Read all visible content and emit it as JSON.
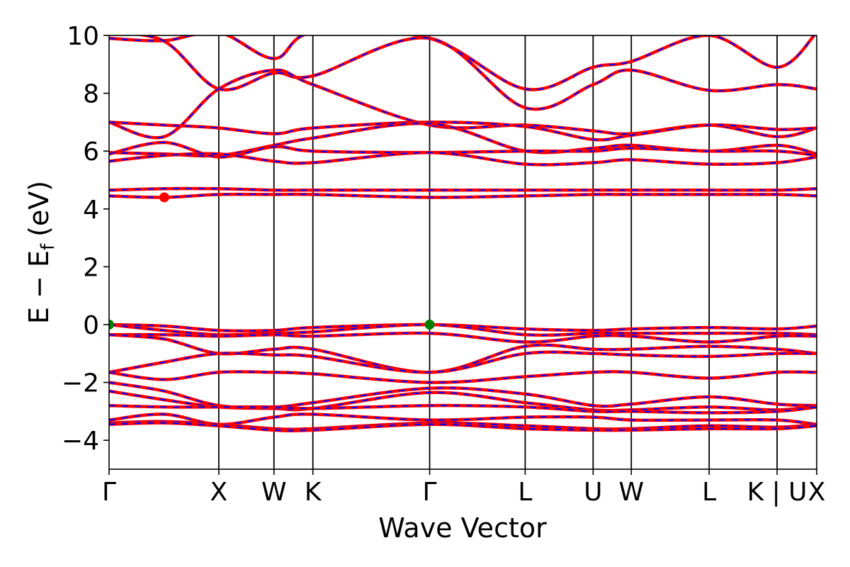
{
  "chart_data": {
    "type": "line",
    "title": "",
    "xlabel": "Wave Vector",
    "ylabel": "E − E",
    "ylabel_subscript": "f",
    "ylabel_unit": "(eV)",
    "ylim": [
      -5,
      10
    ],
    "yticks": [
      -4,
      -2,
      0,
      2,
      4,
      6,
      8,
      10
    ],
    "ytick_labels": [
      "−4",
      "−2",
      "0",
      "2",
      "4",
      "6",
      "8",
      "10"
    ],
    "grid": false,
    "legend": "none",
    "x_range": [
      0,
      1
    ],
    "kpoints": [
      {
        "label": "Γ",
        "x": 0.0
      },
      {
        "label": "X",
        "x": 0.155
      },
      {
        "label": "W",
        "x": 0.233
      },
      {
        "label": "K",
        "x": 0.288
      },
      {
        "label": "Γ",
        "x": 0.453
      },
      {
        "label": "L",
        "x": 0.588
      },
      {
        "label": "U",
        "x": 0.684
      },
      {
        "label": "W",
        "x": 0.738
      },
      {
        "label": "L",
        "x": 0.848
      },
      {
        "label": "K | U",
        "x": 0.944
      },
      {
        "label": "X",
        "x": 1.0
      }
    ],
    "colors": {
      "band": "#ff0000",
      "band_dash": "#0000ff",
      "cbm": "#ff0000",
      "vbm": "#008000",
      "kline": "#000000"
    },
    "cbm": [
      {
        "x": 0.078,
        "y": 4.4
      }
    ],
    "vbm": [
      {
        "x": 0.0,
        "y": 0.0
      },
      {
        "x": 0.453,
        "y": 0.0
      }
    ],
    "series": [
      {
        "values": [
          [
            0,
            9.9
          ],
          [
            0.078,
            9.82
          ],
          [
            0.155,
            10.1
          ],
          [
            0.233,
            9.2
          ],
          [
            0.288,
            10.1
          ],
          [
            0.453,
            9.9
          ],
          [
            0.588,
            8.15
          ],
          [
            0.684,
            8.9
          ],
          [
            0.738,
            9.1
          ],
          [
            0.848,
            10.0
          ],
          [
            0.944,
            8.9
          ],
          [
            1.0,
            10.1
          ]
        ]
      },
      {
        "values": [
          [
            0,
            10.1
          ],
          [
            0.078,
            9.8
          ],
          [
            0.155,
            8.15
          ],
          [
            0.233,
            8.7
          ],
          [
            0.288,
            8.6
          ],
          [
            0.453,
            9.9
          ],
          [
            0.588,
            7.5
          ],
          [
            0.684,
            8.3
          ],
          [
            0.738,
            8.8
          ],
          [
            0.848,
            8.1
          ],
          [
            0.944,
            8.3
          ],
          [
            1.0,
            8.15
          ]
        ]
      },
      {
        "values": [
          [
            0,
            7.0
          ],
          [
            0.078,
            6.5
          ],
          [
            0.155,
            8.15
          ],
          [
            0.233,
            8.8
          ],
          [
            0.288,
            8.3
          ],
          [
            0.453,
            6.9
          ],
          [
            0.588,
            6.9
          ],
          [
            0.684,
            6.7
          ],
          [
            0.738,
            6.6
          ],
          [
            0.848,
            6.9
          ],
          [
            0.944,
            6.5
          ],
          [
            1.0,
            6.8
          ]
        ]
      },
      {
        "values": [
          [
            0,
            7.0
          ],
          [
            0.078,
            6.9
          ],
          [
            0.155,
            6.8
          ],
          [
            0.233,
            6.6
          ],
          [
            0.288,
            6.8
          ],
          [
            0.453,
            7.0
          ],
          [
            0.588,
            6.85
          ],
          [
            0.684,
            6.4
          ],
          [
            0.738,
            6.55
          ],
          [
            0.848,
            6.9
          ],
          [
            0.944,
            6.75
          ],
          [
            1.0,
            6.8
          ]
        ]
      },
      {
        "values": [
          [
            0,
            5.95
          ],
          [
            0.078,
            5.9
          ],
          [
            0.155,
            5.85
          ],
          [
            0.233,
            6.2
          ],
          [
            0.288,
            6.45
          ],
          [
            0.453,
            6.95
          ],
          [
            0.588,
            6.0
          ],
          [
            0.684,
            6.1
          ],
          [
            0.738,
            6.2
          ],
          [
            0.848,
            6.0
          ],
          [
            0.944,
            6.2
          ],
          [
            1.0,
            5.9
          ]
        ]
      },
      {
        "values": [
          [
            0,
            5.9
          ],
          [
            0.078,
            6.3
          ],
          [
            0.155,
            5.8
          ],
          [
            0.233,
            6.15
          ],
          [
            0.288,
            6.0
          ],
          [
            0.453,
            5.95
          ],
          [
            0.588,
            6.0
          ],
          [
            0.684,
            6.0
          ],
          [
            0.738,
            6.1
          ],
          [
            0.848,
            6.0
          ],
          [
            0.944,
            6.0
          ],
          [
            1.0,
            5.85
          ]
        ]
      },
      {
        "values": [
          [
            0,
            5.65
          ],
          [
            0.078,
            5.85
          ],
          [
            0.155,
            5.9
          ],
          [
            0.233,
            5.65
          ],
          [
            0.288,
            5.6
          ],
          [
            0.453,
            5.95
          ],
          [
            0.588,
            5.55
          ],
          [
            0.684,
            5.6
          ],
          [
            0.738,
            5.7
          ],
          [
            0.848,
            5.55
          ],
          [
            0.944,
            5.6
          ],
          [
            1.0,
            5.8
          ]
        ]
      },
      {
        "values": [
          [
            0,
            4.65
          ],
          [
            0.078,
            4.7
          ],
          [
            0.155,
            4.7
          ],
          [
            0.233,
            4.65
          ],
          [
            0.288,
            4.65
          ],
          [
            0.453,
            4.65
          ],
          [
            0.588,
            4.65
          ],
          [
            0.684,
            4.65
          ],
          [
            0.738,
            4.65
          ],
          [
            0.848,
            4.65
          ],
          [
            0.944,
            4.65
          ],
          [
            1.0,
            4.7
          ]
        ]
      },
      {
        "values": [
          [
            0,
            4.45
          ],
          [
            0.078,
            4.4
          ],
          [
            0.155,
            4.5
          ],
          [
            0.233,
            4.5
          ],
          [
            0.288,
            4.5
          ],
          [
            0.453,
            4.4
          ],
          [
            0.588,
            4.45
          ],
          [
            0.684,
            4.5
          ],
          [
            0.738,
            4.5
          ],
          [
            0.848,
            4.5
          ],
          [
            0.944,
            4.5
          ],
          [
            1.0,
            4.45
          ]
        ]
      },
      {
        "values": [
          [
            0,
            0.0
          ],
          [
            0.078,
            -0.05
          ],
          [
            0.155,
            -0.2
          ],
          [
            0.233,
            -0.2
          ],
          [
            0.288,
            -0.1
          ],
          [
            0.453,
            0.0
          ],
          [
            0.588,
            -0.15
          ],
          [
            0.684,
            -0.2
          ],
          [
            0.738,
            -0.15
          ],
          [
            0.848,
            -0.1
          ],
          [
            0.944,
            -0.15
          ],
          [
            1.0,
            -0.05
          ]
        ]
      },
      {
        "values": [
          [
            0,
            0.0
          ],
          [
            0.078,
            -0.2
          ],
          [
            0.155,
            -0.35
          ],
          [
            0.233,
            -0.3
          ],
          [
            0.288,
            -0.25
          ],
          [
            0.453,
            0.0
          ],
          [
            0.588,
            -0.35
          ],
          [
            0.684,
            -0.3
          ],
          [
            0.738,
            -0.3
          ],
          [
            0.848,
            -0.3
          ],
          [
            0.944,
            -0.3
          ],
          [
            1.0,
            -0.35
          ]
        ]
      },
      {
        "values": [
          [
            0,
            -0.35
          ],
          [
            0.078,
            -0.35
          ],
          [
            0.155,
            -0.4
          ],
          [
            0.233,
            -0.35
          ],
          [
            0.288,
            -0.4
          ],
          [
            0.453,
            -0.3
          ],
          [
            0.588,
            -0.6
          ],
          [
            0.684,
            -0.4
          ],
          [
            0.738,
            -0.4
          ],
          [
            0.848,
            -0.6
          ],
          [
            0.944,
            -0.4
          ],
          [
            1.0,
            -0.4
          ]
        ]
      },
      {
        "values": [
          [
            0,
            -0.35
          ],
          [
            0.078,
            -0.5
          ],
          [
            0.155,
            -1.0
          ],
          [
            0.233,
            -0.85
          ],
          [
            0.288,
            -0.85
          ],
          [
            0.453,
            -1.65
          ],
          [
            0.588,
            -0.75
          ],
          [
            0.684,
            -0.85
          ],
          [
            0.738,
            -0.85
          ],
          [
            0.848,
            -0.75
          ],
          [
            0.944,
            -0.85
          ],
          [
            1.0,
            -1.0
          ]
        ]
      },
      {
        "values": [
          [
            0,
            -1.65
          ],
          [
            0.078,
            -1.3
          ],
          [
            0.155,
            -1.0
          ],
          [
            0.233,
            -1.05
          ],
          [
            0.288,
            -1.1
          ],
          [
            0.453,
            -1.65
          ],
          [
            0.588,
            -1.0
          ],
          [
            0.684,
            -1.0
          ],
          [
            0.738,
            -1.05
          ],
          [
            0.848,
            -1.1
          ],
          [
            0.944,
            -1.0
          ],
          [
            1.0,
            -1.0
          ]
        ]
      },
      {
        "values": [
          [
            0,
            -1.65
          ],
          [
            0.078,
            -1.9
          ],
          [
            0.155,
            -1.65
          ],
          [
            0.233,
            -1.65
          ],
          [
            0.288,
            -1.7
          ],
          [
            0.453,
            -2.0
          ],
          [
            0.588,
            -1.8
          ],
          [
            0.684,
            -1.65
          ],
          [
            0.738,
            -1.65
          ],
          [
            0.848,
            -1.85
          ],
          [
            0.944,
            -1.65
          ],
          [
            1.0,
            -1.65
          ]
        ]
      },
      {
        "values": [
          [
            0,
            -2.0
          ],
          [
            0.078,
            -2.3
          ],
          [
            0.155,
            -2.8
          ],
          [
            0.233,
            -2.85
          ],
          [
            0.288,
            -2.7
          ],
          [
            0.453,
            -2.2
          ],
          [
            0.588,
            -2.4
          ],
          [
            0.684,
            -2.8
          ],
          [
            0.738,
            -2.75
          ],
          [
            0.848,
            -2.5
          ],
          [
            0.944,
            -2.75
          ],
          [
            1.0,
            -2.8
          ]
        ]
      },
      {
        "values": [
          [
            0,
            -2.3
          ],
          [
            0.078,
            -2.6
          ],
          [
            0.155,
            -2.85
          ],
          [
            0.233,
            -2.9
          ],
          [
            0.288,
            -2.9
          ],
          [
            0.453,
            -2.35
          ],
          [
            0.588,
            -2.7
          ],
          [
            0.684,
            -2.95
          ],
          [
            0.738,
            -2.95
          ],
          [
            0.848,
            -2.85
          ],
          [
            0.944,
            -2.95
          ],
          [
            1.0,
            -2.8
          ]
        ]
      },
      {
        "values": [
          [
            0,
            -2.8
          ],
          [
            0.078,
            -2.85
          ],
          [
            0.155,
            -2.85
          ],
          [
            0.233,
            -2.85
          ],
          [
            0.288,
            -2.9
          ],
          [
            0.453,
            -2.8
          ],
          [
            0.588,
            -2.85
          ],
          [
            0.684,
            -3.0
          ],
          [
            0.738,
            -3.0
          ],
          [
            0.848,
            -3.05
          ],
          [
            0.944,
            -3.0
          ],
          [
            1.0,
            -2.85
          ]
        ]
      },
      {
        "values": [
          [
            0,
            -3.3
          ],
          [
            0.078,
            -3.1
          ],
          [
            0.155,
            -3.45
          ],
          [
            0.233,
            -3.2
          ],
          [
            0.288,
            -3.1
          ],
          [
            0.453,
            -3.3
          ],
          [
            0.588,
            -3.2
          ],
          [
            0.684,
            -3.2
          ],
          [
            0.738,
            -3.3
          ],
          [
            0.848,
            -3.3
          ],
          [
            0.944,
            -3.3
          ],
          [
            1.0,
            -3.45
          ]
        ]
      },
      {
        "values": [
          [
            0,
            -3.4
          ],
          [
            0.078,
            -3.35
          ],
          [
            0.155,
            -3.45
          ],
          [
            0.233,
            -3.6
          ],
          [
            0.288,
            -3.6
          ],
          [
            0.453,
            -3.4
          ],
          [
            0.588,
            -3.5
          ],
          [
            0.684,
            -3.6
          ],
          [
            0.738,
            -3.6
          ],
          [
            0.848,
            -3.5
          ],
          [
            0.944,
            -3.55
          ],
          [
            1.0,
            -3.45
          ]
        ]
      },
      {
        "values": [
          [
            0,
            -3.45
          ],
          [
            0.078,
            -3.4
          ],
          [
            0.155,
            -3.5
          ],
          [
            0.233,
            -3.65
          ],
          [
            0.288,
            -3.65
          ],
          [
            0.453,
            -3.45
          ],
          [
            0.588,
            -3.6
          ],
          [
            0.684,
            -3.65
          ],
          [
            0.738,
            -3.65
          ],
          [
            0.848,
            -3.6
          ],
          [
            0.944,
            -3.6
          ],
          [
            1.0,
            -3.5
          ]
        ]
      }
    ]
  }
}
